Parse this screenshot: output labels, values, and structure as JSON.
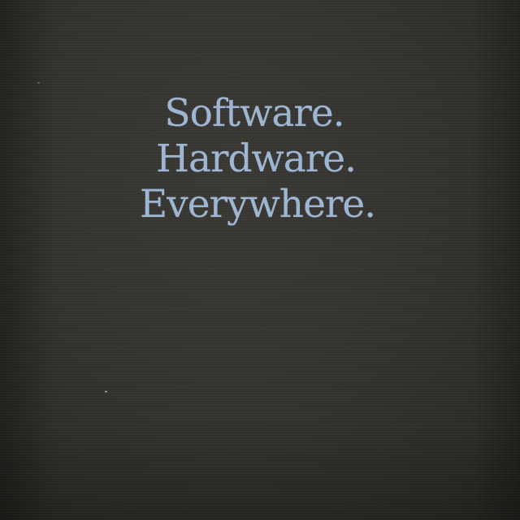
{
  "shirt_print": {
    "lines": [
      "Software.",
      "Hardware.",
      "Everywhere."
    ],
    "text_color": "#9fb6d2"
  },
  "fabric": {
    "color": "#2f2d29"
  }
}
